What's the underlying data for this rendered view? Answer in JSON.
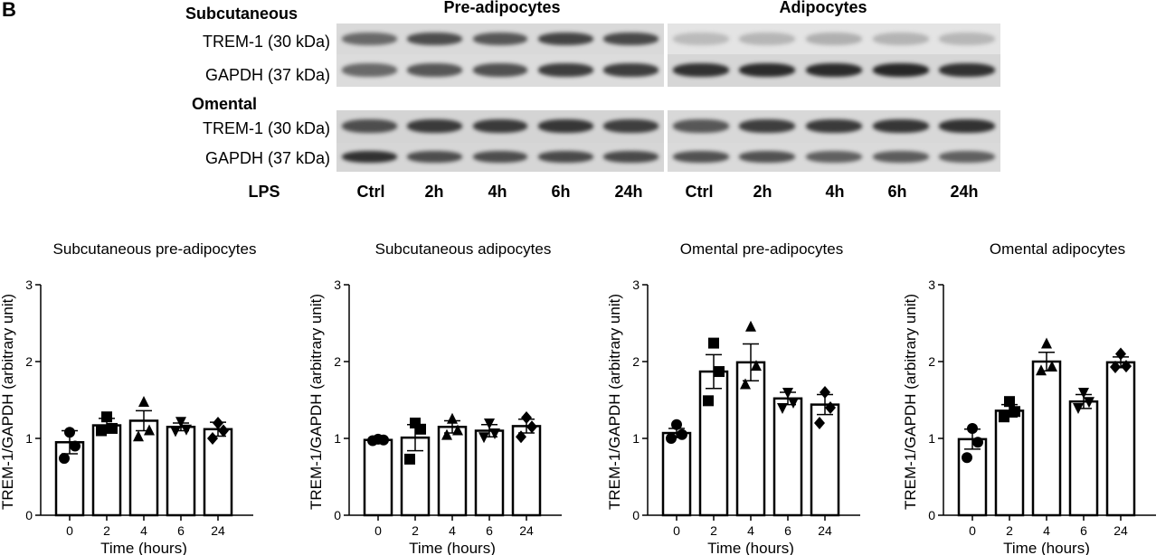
{
  "panel_letter": "B",
  "blot": {
    "columns": {
      "pre": "Pre-adipocytes",
      "adi": "Adipocytes"
    },
    "sections": [
      {
        "name": "Subcutaneous",
        "rows": [
          {
            "label": "TREM-1 (30 kDa)",
            "pre": [
              0.55,
              0.7,
              0.65,
              0.75,
              0.72
            ],
            "adi": [
              0.12,
              0.15,
              0.18,
              0.16,
              0.14
            ]
          },
          {
            "label": "GAPDH (37 kDa)",
            "pre": [
              0.55,
              0.65,
              0.68,
              0.78,
              0.78
            ],
            "adi": [
              0.85,
              0.88,
              0.88,
              0.9,
              0.85
            ]
          }
        ]
      },
      {
        "name": "Omental",
        "rows": [
          {
            "label": "TREM-1 (30 kDa)",
            "pre": [
              0.7,
              0.8,
              0.8,
              0.82,
              0.78
            ],
            "adi": [
              0.65,
              0.78,
              0.8,
              0.82,
              0.84
            ]
          },
          {
            "label": "GAPDH (37 kDa)",
            "pre": [
              0.85,
              0.7,
              0.7,
              0.72,
              0.72
            ],
            "adi": [
              0.68,
              0.68,
              0.6,
              0.62,
              0.6
            ]
          }
        ]
      }
    ],
    "lps_label": "LPS",
    "lanes_pre": [
      "Ctrl",
      "2h",
      "4h",
      "6h",
      "24h"
    ],
    "lanes_adi": [
      "Ctrl",
      "2h",
      "4h",
      "6h",
      "24h"
    ]
  },
  "chart_data": [
    {
      "type": "bar",
      "title": "Subcutaneous pre-adipocytes",
      "categories": [
        "0",
        "2",
        "4",
        "6",
        "24"
      ],
      "values": [
        0.95,
        1.17,
        1.23,
        1.15,
        1.12
      ],
      "errors": [
        0.15,
        0.09,
        0.13,
        0.05,
        0.09
      ],
      "points": [
        [
          0.74,
          0.9,
          1.08
        ],
        [
          1.1,
          1.13,
          1.28
        ],
        [
          1.02,
          1.1,
          1.47
        ],
        [
          1.1,
          1.12,
          1.22
        ],
        [
          1.0,
          1.1,
          1.2
        ]
      ],
      "markers": [
        "circle",
        "square",
        "triangle",
        "triangle-down",
        "diamond"
      ],
      "xlabel": "Time (hours)",
      "ylabel": "TREM-1/GAPDH (arbitrary unit)",
      "ylim": [
        0,
        3
      ],
      "yticks": [
        0,
        1,
        2,
        3
      ]
    },
    {
      "type": "bar",
      "title": "Subcutaneous adipocytes",
      "categories": [
        "0",
        "2",
        "4",
        "6",
        "24"
      ],
      "values": [
        0.98,
        1.01,
        1.15,
        1.1,
        1.16
      ],
      "errors": [
        0.02,
        0.17,
        0.08,
        0.08,
        0.09
      ],
      "points": [
        [
          0.97,
          0.98,
          0.99
        ],
        [
          0.73,
          1.12,
          1.2
        ],
        [
          1.04,
          1.1,
          1.25
        ],
        [
          1.02,
          1.07,
          1.2
        ],
        [
          1.02,
          1.15,
          1.27
        ]
      ],
      "markers": [
        "circle",
        "square",
        "triangle",
        "triangle-down",
        "diamond"
      ],
      "xlabel": "Time (hours)",
      "ylabel": "TREM-1/GAPDH (arbitrary unit)",
      "ylim": [
        0,
        3
      ],
      "yticks": [
        0,
        1,
        2,
        3
      ]
    },
    {
      "type": "bar",
      "title": "Omental pre-adipocytes",
      "categories": [
        "0",
        "2",
        "4",
        "6",
        "24"
      ],
      "values": [
        1.07,
        1.87,
        1.99,
        1.52,
        1.44
      ],
      "errors": [
        0.06,
        0.22,
        0.24,
        0.08,
        0.13
      ],
      "points": [
        [
          1.0,
          1.05,
          1.18
        ],
        [
          1.49,
          1.87,
          2.24
        ],
        [
          1.7,
          1.94,
          2.45
        ],
        [
          1.4,
          1.47,
          1.6
        ],
        [
          1.2,
          1.4,
          1.6
        ]
      ],
      "markers": [
        "circle",
        "square",
        "triangle",
        "triangle-down",
        "diamond"
      ],
      "xlabel": "Time (hours)",
      "ylabel": "TREM-1/GAPDH (arbitrary unit)",
      "ylim": [
        0,
        3
      ],
      "yticks": [
        0,
        1,
        2,
        3
      ]
    },
    {
      "type": "bar",
      "title": "Omental adipocytes",
      "categories": [
        "0",
        "2",
        "4",
        "6",
        "24"
      ],
      "values": [
        0.99,
        1.36,
        2.0,
        1.48,
        1.99
      ],
      "errors": [
        0.13,
        0.08,
        0.12,
        0.09,
        0.07
      ],
      "points": [
        [
          0.75,
          0.95,
          1.13
        ],
        [
          1.28,
          1.35,
          1.48
        ],
        [
          1.88,
          1.93,
          2.23
        ],
        [
          1.4,
          1.48,
          1.6
        ],
        [
          1.93,
          1.94,
          2.1
        ]
      ],
      "markers": [
        "circle",
        "square",
        "triangle",
        "triangle-down",
        "diamond"
      ],
      "xlabel": "Time (hours)",
      "ylabel": "TREM-1/GAPDH (arbitrary unit)",
      "ylim": [
        0,
        3
      ],
      "yticks": [
        0,
        1,
        2,
        3
      ]
    }
  ]
}
